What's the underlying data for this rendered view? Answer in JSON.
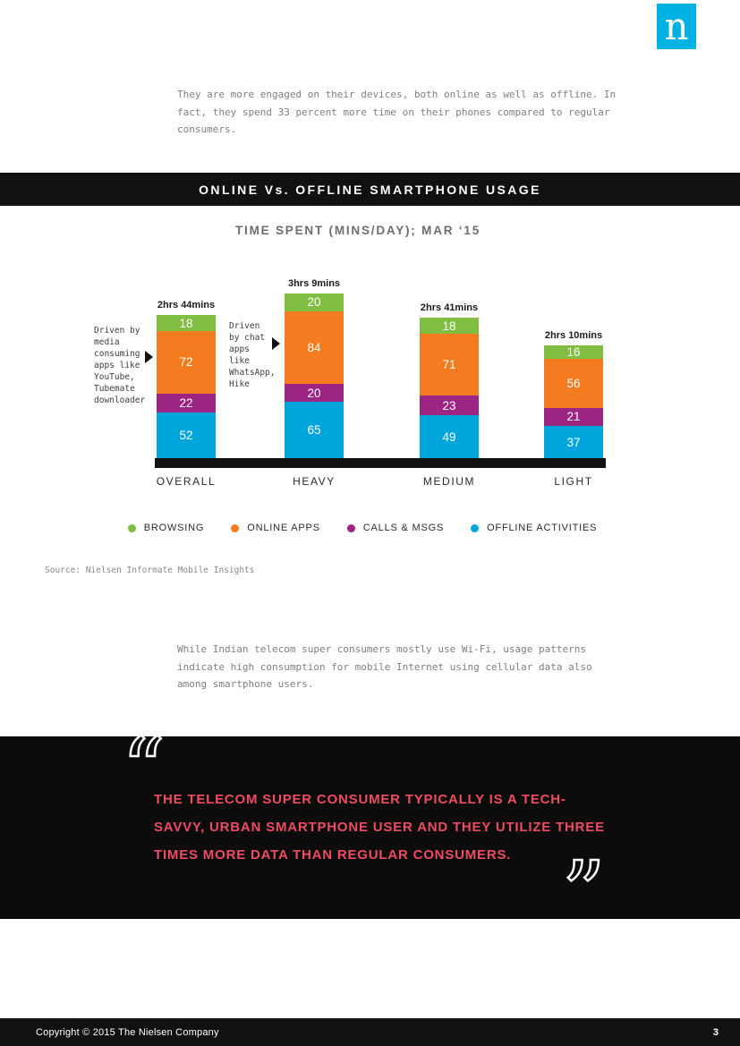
{
  "logo": {
    "letter": "n"
  },
  "intro": {
    "text": "They are more engaged on their devices, both online as well as offline. In fact, they spend 33 percent more time on their phones compared to regular consumers."
  },
  "banner": {
    "title": "ONLINE Vs. OFFLINE SMARTPHONE USAGE"
  },
  "chart": {
    "title": "TIME SPENT (MINS/DAY); MAR ‘15",
    "source": "Source: Nielsen Informate Mobile Insights"
  },
  "chart_data": {
    "type": "bar",
    "stacked": true,
    "title": "TIME SPENT (MINS/DAY); MAR ‘15",
    "unit": "mins/day",
    "categories": [
      "OVERALL",
      "HEAVY",
      "MEDIUM",
      "LIGHT"
    ],
    "totals": [
      "2hrs 44mins",
      "3hrs 9mins",
      "2hrs 41mins",
      "2hrs 10mins"
    ],
    "series": [
      {
        "name": "BROWSING",
        "color": "#7fbe40",
        "values": [
          18,
          20,
          18,
          16
        ]
      },
      {
        "name": "ONLINE APPS",
        "color": "#f47b20",
        "values": [
          72,
          84,
          71,
          56
        ]
      },
      {
        "name": "CALLS & MSGS",
        "color": "#9c2483",
        "values": [
          22,
          20,
          23,
          21
        ]
      },
      {
        "name": "OFFLINE ACTIVITIES",
        "color": "#00a5dc",
        "values": [
          52,
          65,
          49,
          37
        ]
      }
    ],
    "annotations": [
      {
        "text": "Driven by media consuming apps like YouTube, Tubemate downloader",
        "target": "OVERALL"
      },
      {
        "text": "Driven by chat apps like WhatsApp, Hike",
        "target": "HEAVY"
      }
    ],
    "legend_position": "bottom",
    "ylim": [
      0,
      189
    ]
  },
  "body": {
    "text": "While Indian telecom super consumers mostly use Wi-Fi, usage patterns indicate high consumption for mobile Internet using cellular data also among smartphone users."
  },
  "quote": {
    "text": "THE TELECOM SUPER CONSUMER TYPICALLY IS A TECH-SAVVY, URBAN SMARTPHONE USER AND THEY UTILIZE THREE TIMES MORE DATA THAN REGULAR CONSUMERS.",
    "open_mark": "“",
    "close_mark": "”",
    "accent_color": "#ef4b62"
  },
  "footer": {
    "copyright": "Copyright © 2015 The Nielsen Company",
    "page_number": "3"
  },
  "colors": {
    "logo_bg": "#00b2e3",
    "accent_pink": "#ef4b62",
    "section_black": "#111111"
  }
}
